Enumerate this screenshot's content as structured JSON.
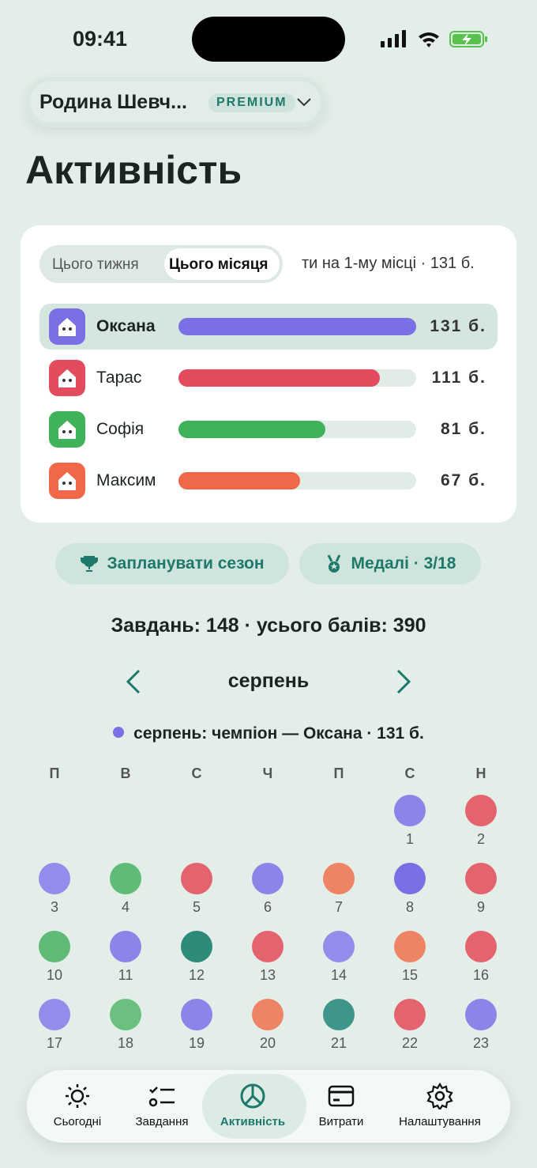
{
  "status_bar": {
    "time": "09:41"
  },
  "header": {
    "family": "Родина Шевч...",
    "badge": "PREMIUM",
    "title": "Активність"
  },
  "leaderboard": {
    "tabs": [
      "Цього тижня",
      "Цього місяця"
    ],
    "active_tab": 1,
    "rank_note": "ти на 1-му місці · 131 б.",
    "members": [
      {
        "name": "Оксана",
        "score": 131,
        "score_label": "131 б.",
        "color": "#7b6fe6"
      },
      {
        "name": "Тарас",
        "score": 111,
        "score_label": "111 б.",
        "color": "#e24c5e"
      },
      {
        "name": "Софія",
        "score": 81,
        "score_label": "81 б.",
        "color": "#3fb25a"
      },
      {
        "name": "Максим",
        "score": 67,
        "score_label": "67 б.",
        "color": "#f06848"
      }
    ]
  },
  "actions": [
    "Запланувати сезон",
    "Медалі · 3/18"
  ],
  "summary": "Завдань: 148 · усього балів: 390",
  "calendar": {
    "month": "серпень",
    "champion": "серпень: чемпіон — Оксана · 131 б.",
    "champion_color": "#7b6fe6",
    "weekdays": [
      "П",
      "В",
      "С",
      "Ч",
      "П",
      "С",
      "Н"
    ],
    "weeks": [
      [
        null,
        null,
        null,
        null,
        null,
        {
          "day": "1",
          "color": "#8d84ea"
        },
        {
          "day": "2",
          "color": "#e4636f"
        }
      ],
      [
        {
          "day": "3",
          "color": "#948ceb"
        },
        {
          "day": "4",
          "color": "#5fbb75"
        },
        {
          "day": "5",
          "color": "#e4636f"
        },
        {
          "day": "6",
          "color": "#8d84ea"
        },
        {
          "day": "7",
          "color": "#ee8366"
        },
        {
          "day": "8",
          "color": "#7b6fe6"
        },
        {
          "day": "9",
          "color": "#e4636f"
        }
      ],
      [
        {
          "day": "10",
          "color": "#5fbb75"
        },
        {
          "day": "11",
          "color": "#8d84ea"
        },
        {
          "day": "12",
          "color": "#2e8b7a"
        },
        {
          "day": "13",
          "color": "#e4636f"
        },
        {
          "day": "14",
          "color": "#948ceb"
        },
        {
          "day": "15",
          "color": "#ee8366"
        },
        {
          "day": "16",
          "color": "#e4636f"
        }
      ],
      [
        {
          "day": "17",
          "color": "#948ceb"
        },
        {
          "day": "18",
          "color": "#6cc07f"
        },
        {
          "day": "19",
          "color": "#8d84ea"
        },
        {
          "day": "20",
          "color": "#ee8366"
        },
        {
          "day": "21",
          "color": "#3e958a"
        },
        {
          "day": "22",
          "color": "#e4636f"
        },
        {
          "day": "23",
          "color": "#8d84ea"
        }
      ]
    ]
  },
  "nav": {
    "items": [
      "Сьогодні",
      "Завдання",
      "Активність",
      "Витрати",
      "Налаштування"
    ],
    "active": 2
  }
}
